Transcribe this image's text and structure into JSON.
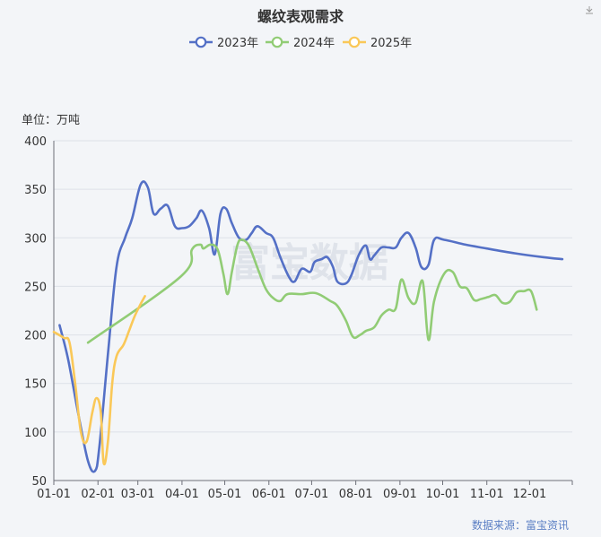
{
  "title": "螺纹表观需求",
  "unit_label": "单位：万吨",
  "source_label": "数据来源：富宝资讯",
  "watermark": "富宝数据",
  "chart_data": {
    "type": "line",
    "title": "螺纹表观需求",
    "ylabel": "单位：万吨",
    "xlabel": "",
    "ylim": [
      50,
      400
    ],
    "yticks": [
      50,
      100,
      150,
      200,
      250,
      300,
      350,
      400
    ],
    "xlim": [
      1,
      365
    ],
    "xticks": [
      {
        "label": "01-01",
        "day": 1
      },
      {
        "label": "02-01",
        "day": 32
      },
      {
        "label": "03-01",
        "day": 60
      },
      {
        "label": "04-01",
        "day": 91
      },
      {
        "label": "05-01",
        "day": 121
      },
      {
        "label": "06-01",
        "day": 152
      },
      {
        "label": "07-01",
        "day": 182
      },
      {
        "label": "08-01",
        "day": 213
      },
      {
        "label": "09-01",
        "day": 244
      },
      {
        "label": "10-01",
        "day": 274
      },
      {
        "label": "11-01",
        "day": 305
      },
      {
        "label": "12-01",
        "day": 335
      }
    ],
    "grid": true,
    "legend_position": "top-center",
    "series": [
      {
        "name": "2023年",
        "color": "#5470c6",
        "points": [
          [
            5,
            210
          ],
          [
            11,
            175
          ],
          [
            18,
            120
          ],
          [
            25,
            70
          ],
          [
            30,
            60
          ],
          [
            33,
            85
          ],
          [
            39,
            180
          ],
          [
            45,
            270
          ],
          [
            51,
            300
          ],
          [
            56,
            320
          ],
          [
            62,
            355
          ],
          [
            67,
            352
          ],
          [
            71,
            325
          ],
          [
            76,
            330
          ],
          [
            81,
            333
          ],
          [
            86,
            312
          ],
          [
            91,
            310
          ],
          [
            96,
            312
          ],
          [
            101,
            320
          ],
          [
            105,
            328
          ],
          [
            110,
            310
          ],
          [
            114,
            283
          ],
          [
            118,
            325
          ],
          [
            122,
            330
          ],
          [
            126,
            315
          ],
          [
            131,
            300
          ],
          [
            136,
            298
          ],
          [
            140,
            305
          ],
          [
            144,
            312
          ],
          [
            150,
            305
          ],
          [
            155,
            300
          ],
          [
            160,
            280
          ],
          [
            166,
            260
          ],
          [
            170,
            255
          ],
          [
            175,
            268
          ],
          [
            181,
            265
          ],
          [
            184,
            275
          ],
          [
            189,
            278
          ],
          [
            193,
            280
          ],
          [
            197,
            270
          ],
          [
            200,
            255
          ],
          [
            206,
            253
          ],
          [
            210,
            262
          ],
          [
            215,
            282
          ],
          [
            220,
            292
          ],
          [
            223,
            278
          ],
          [
            226,
            282
          ],
          [
            231,
            290
          ],
          [
            236,
            290
          ],
          [
            241,
            290
          ],
          [
            245,
            300
          ],
          [
            250,
            305
          ],
          [
            255,
            290
          ],
          [
            259,
            270
          ],
          [
            264,
            272
          ],
          [
            268,
            298
          ],
          [
            275,
            298
          ],
          [
            290,
            293
          ],
          [
            305,
            289
          ],
          [
            325,
            284
          ],
          [
            345,
            280
          ],
          [
            358,
            278
          ]
        ]
      },
      {
        "name": "2024年",
        "color": "#91cc75",
        "points": [
          [
            25,
            192
          ],
          [
            90,
            260
          ],
          [
            98,
            288
          ],
          [
            104,
            293
          ],
          [
            106,
            289
          ],
          [
            111,
            293
          ],
          [
            116,
            288
          ],
          [
            120,
            263
          ],
          [
            123,
            242
          ],
          [
            126,
            265
          ],
          [
            130,
            293
          ],
          [
            133,
            298
          ],
          [
            137,
            294
          ],
          [
            140,
            285
          ],
          [
            145,
            265
          ],
          [
            150,
            247
          ],
          [
            155,
            238
          ],
          [
            160,
            235
          ],
          [
            165,
            242
          ],
          [
            175,
            242
          ],
          [
            185,
            243
          ],
          [
            195,
            235
          ],
          [
            200,
            230
          ],
          [
            206,
            215
          ],
          [
            211,
            198
          ],
          [
            216,
            200
          ],
          [
            220,
            204
          ],
          [
            226,
            208
          ],
          [
            231,
            220
          ],
          [
            236,
            226
          ],
          [
            241,
            227
          ],
          [
            245,
            257
          ],
          [
            250,
            238
          ],
          [
            255,
            233
          ],
          [
            260,
            255
          ],
          [
            264,
            195
          ],
          [
            268,
            235
          ],
          [
            275,
            263
          ],
          [
            281,
            265
          ],
          [
            286,
            250
          ],
          [
            291,
            248
          ],
          [
            296,
            236
          ],
          [
            301,
            237
          ],
          [
            306,
            239
          ],
          [
            311,
            241
          ],
          [
            316,
            233
          ],
          [
            321,
            234
          ],
          [
            326,
            244
          ],
          [
            331,
            245
          ],
          [
            336,
            245
          ],
          [
            340,
            226
          ]
        ]
      },
      {
        "name": "2025年",
        "color": "#fac858",
        "points": [
          [
            1,
            203
          ],
          [
            8,
            197
          ],
          [
            12,
            192
          ],
          [
            16,
            150
          ],
          [
            20,
            100
          ],
          [
            24,
            90
          ],
          [
            28,
            120
          ],
          [
            31,
            135
          ],
          [
            34,
            120
          ],
          [
            36,
            68
          ],
          [
            39,
            90
          ],
          [
            42,
            150
          ],
          [
            45,
            178
          ],
          [
            50,
            190
          ],
          [
            54,
            205
          ],
          [
            58,
            220
          ],
          [
            62,
            232
          ],
          [
            65,
            240
          ]
        ]
      }
    ]
  }
}
